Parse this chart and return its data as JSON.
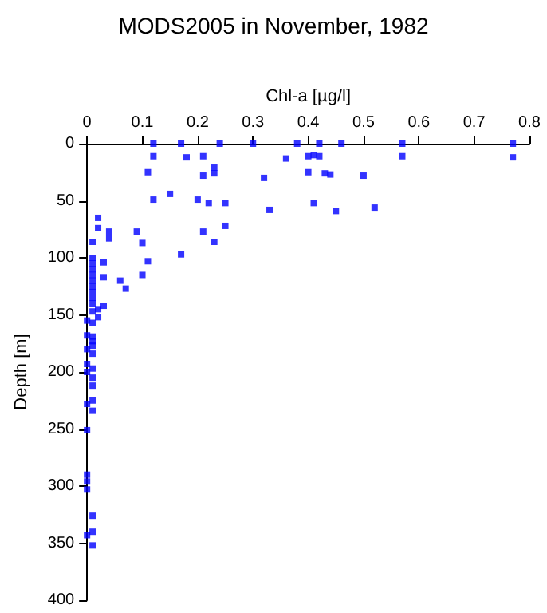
{
  "chart_data": {
    "type": "scatter",
    "title": "MODS2005 in November, 1982",
    "xlabel": "Chl-a [µg/l]",
    "ylabel": "Depth [m]",
    "xlim": [
      0,
      0.8
    ],
    "xticks": [
      0,
      0.1,
      0.2,
      0.3,
      0.4,
      0.5,
      0.6,
      0.7,
      0.8
    ],
    "ylim": [
      400,
      0
    ],
    "yticks": [
      0,
      50,
      100,
      150,
      200,
      250,
      300,
      350,
      400
    ],
    "grid": false,
    "marker": "square",
    "series": [
      {
        "color": "#0000ff",
        "x": [
          0.12,
          0.17,
          0.24,
          0.3,
          0.38,
          0.42,
          0.46,
          0.57,
          0.77,
          0.12,
          0.18,
          0.21,
          0.23,
          0.23,
          0.11,
          0.21,
          0.32,
          0.36,
          0.15,
          0.12,
          0.2,
          0.22,
          0.25,
          0.33,
          0.02,
          0.02,
          0.04,
          0.04,
          0.09,
          0.1,
          0.21,
          0.25,
          0.23,
          0.17,
          0.11,
          0.1,
          0.03,
          0.03,
          0.06,
          0.07,
          0.01,
          0.77,
          0.57,
          0.4,
          0.41,
          0.42,
          0.4,
          0.43,
          0.44,
          0.5,
          0.41,
          0.45,
          0.52,
          0.01,
          0.01,
          0.01,
          0.01,
          0.01,
          0.01,
          0.01,
          0.01,
          0.01,
          0.02,
          0.03,
          0.01,
          0,
          0.02,
          0.01,
          0,
          0.01,
          0.01,
          0.01,
          0,
          0.01,
          0,
          0,
          0.01,
          0.01,
          0.01,
          0,
          0.01,
          0.01,
          0,
          0,
          0,
          0,
          0.01,
          0,
          0.01,
          0.01
        ],
        "values": [
          0,
          0,
          0,
          0,
          0,
          0,
          0,
          0,
          0,
          11,
          12,
          11,
          21,
          26,
          25,
          28,
          30,
          13,
          44,
          49,
          49,
          52,
          52,
          58,
          65,
          74,
          77,
          83,
          77,
          87,
          77,
          72,
          86,
          97,
          103,
          115,
          104,
          117,
          120,
          127,
          86,
          12,
          11,
          11,
          10,
          11,
          25,
          26,
          27,
          28,
          52,
          59,
          56,
          100,
          105,
          110,
          115,
          120,
          125,
          130,
          135,
          140,
          145,
          142,
          147,
          155,
          152,
          157,
          168,
          169,
          173,
          177,
          180,
          184,
          193,
          200,
          197,
          205,
          212,
          228,
          225,
          234,
          251,
          290,
          296,
          303,
          326,
          343,
          340,
          352
        ]
      }
    ]
  }
}
